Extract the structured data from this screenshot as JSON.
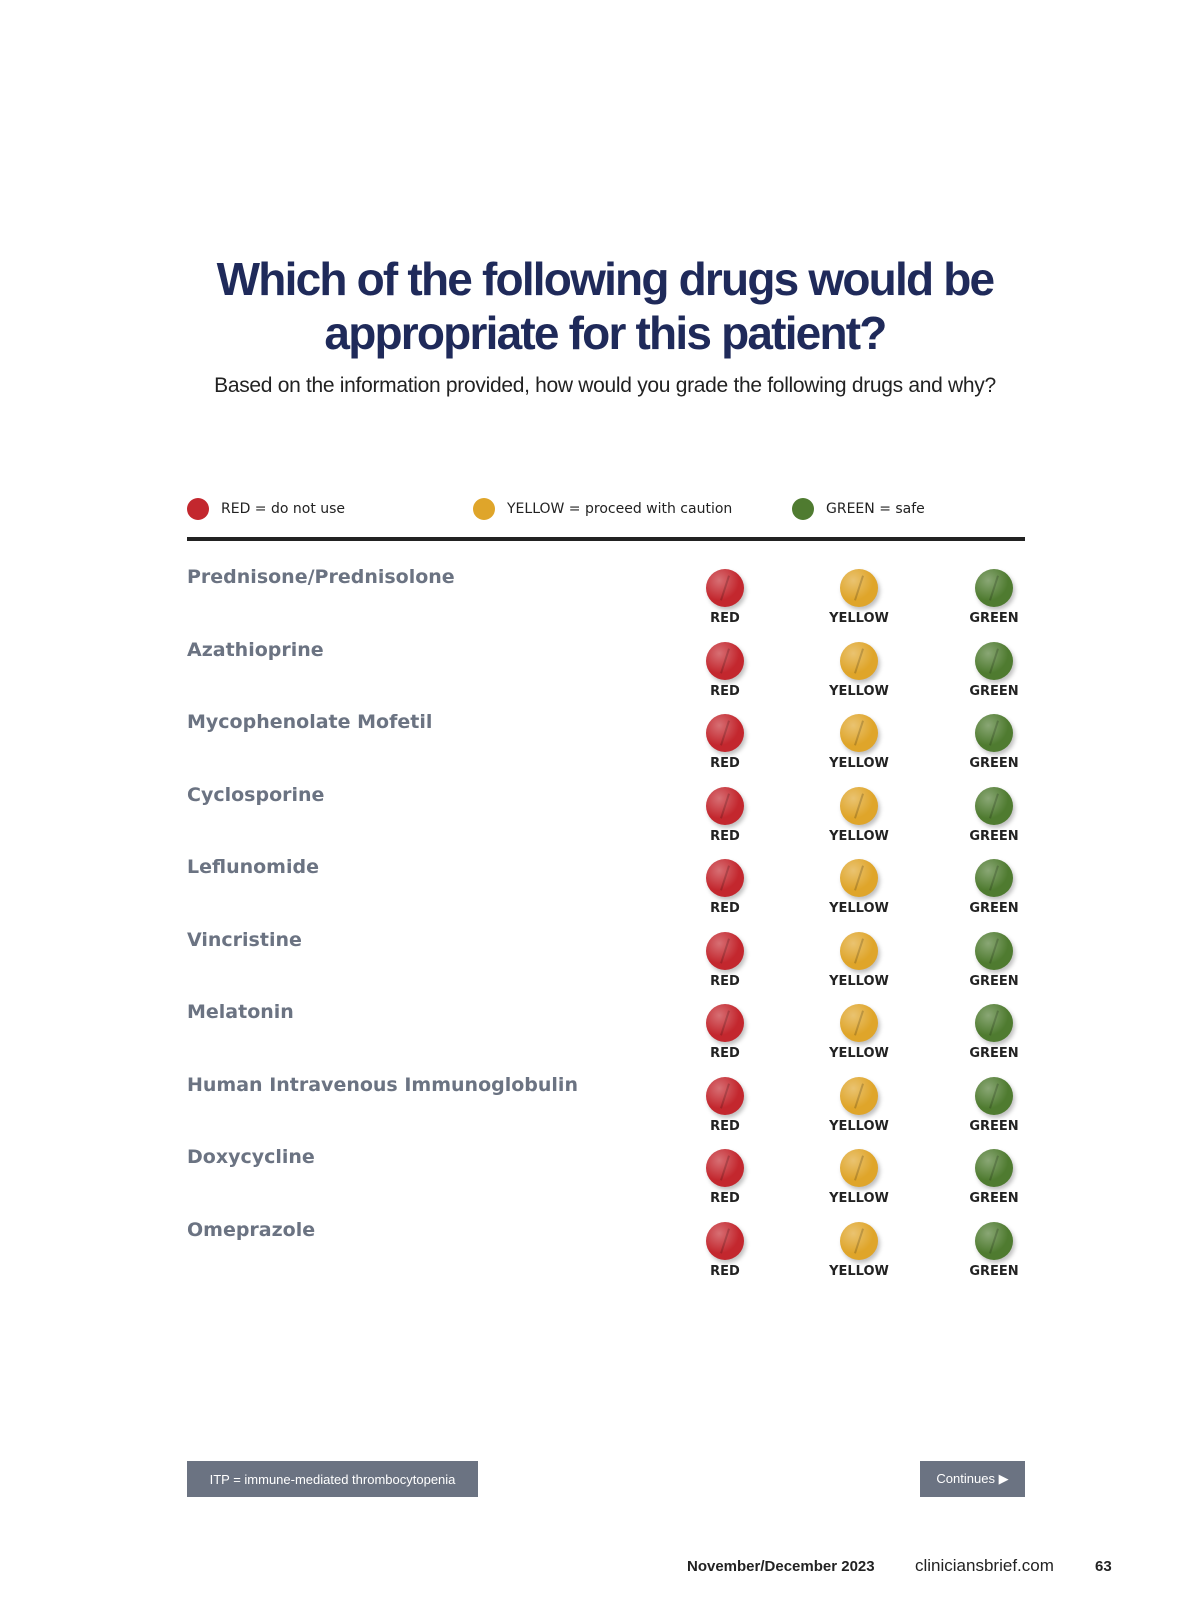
{
  "title": "Which of the following drugs would be appropriate for this patient?",
  "subtitle": "Based on the information provided, how would you grade the following drugs and why?",
  "legend": [
    {
      "label": "RED = do not use",
      "color": "#c3272e"
    },
    {
      "label": "YELLOW = proceed with caution",
      "color": "#dfa52a"
    },
    {
      "label": "GREEN = safe",
      "color": "#4f7b30"
    }
  ],
  "options": [
    "RED",
    "YELLOW",
    "GREEN"
  ],
  "drugs": [
    "Prednisone/Prednisolone",
    "Azathioprine",
    "Mycophenolate Mofetil",
    "Cyclosporine",
    "Leflunomide",
    "Vincristine",
    "Melatonin",
    "Human Intravenous Immunoglobulin",
    "Doxycycline",
    "Omeprazole"
  ],
  "footnote": "ITP = immune-mediated thrombocytopenia",
  "continues": "Continues ▶",
  "footer": {
    "issue": "November/December 2023",
    "site": "cliniciansbrief.com",
    "page": "63"
  }
}
